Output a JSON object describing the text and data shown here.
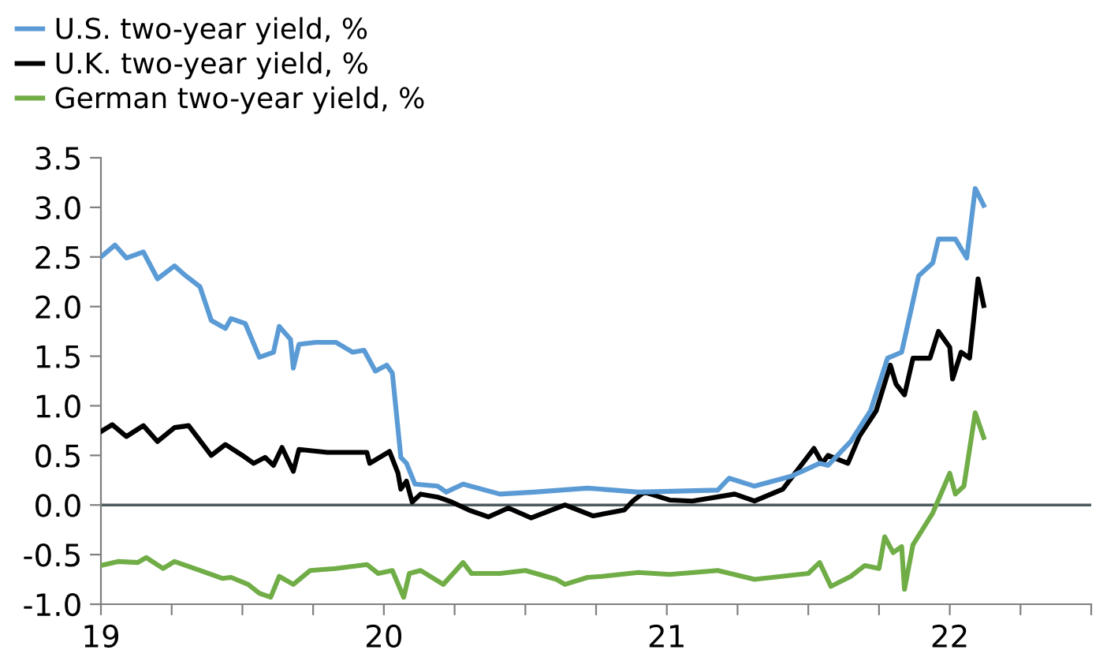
{
  "chart_data": {
    "type": "line",
    "series": [
      {
        "name": "U.S. two-year yield, %",
        "color": "#5b9bd5",
        "x": [
          19.0,
          19.05,
          19.09,
          19.15,
          19.2,
          19.26,
          19.3,
          19.35,
          19.39,
          19.44,
          19.46,
          19.51,
          19.56,
          19.61,
          19.63,
          19.67,
          19.68,
          19.7,
          19.76,
          19.83,
          19.89,
          19.93,
          19.97,
          20.01,
          20.03,
          20.06,
          20.08,
          20.11,
          20.19,
          20.22,
          20.28,
          20.41,
          20.53,
          20.72,
          20.9,
          21.18,
          21.22,
          21.31,
          21.44,
          21.54,
          21.57,
          21.65,
          21.72,
          21.78,
          21.83,
          21.89,
          21.94,
          21.96,
          22.02,
          22.06,
          22.09,
          22.12
        ],
        "values": [
          2.5,
          2.62,
          2.49,
          2.55,
          2.28,
          2.41,
          2.31,
          2.2,
          1.86,
          1.78,
          1.88,
          1.83,
          1.49,
          1.54,
          1.8,
          1.67,
          1.38,
          1.62,
          1.64,
          1.64,
          1.54,
          1.56,
          1.35,
          1.41,
          1.33,
          0.48,
          0.42,
          0.21,
          0.19,
          0.13,
          0.21,
          0.11,
          0.13,
          0.17,
          0.13,
          0.15,
          0.27,
          0.19,
          0.29,
          0.42,
          0.4,
          0.64,
          0.95,
          1.48,
          1.54,
          2.31,
          2.44,
          2.68,
          2.68,
          2.49,
          3.19,
          3.02
        ]
      },
      {
        "name": "U.K. two-year yield, %",
        "color": "#000000",
        "x": [
          19.0,
          19.04,
          19.09,
          19.15,
          19.2,
          19.26,
          19.31,
          19.39,
          19.44,
          19.5,
          19.54,
          19.58,
          19.61,
          19.64,
          19.68,
          19.7,
          19.8,
          19.94,
          19.95,
          20.02,
          20.05,
          20.06,
          20.08,
          20.1,
          20.13,
          20.19,
          20.24,
          20.3,
          20.37,
          20.44,
          20.52,
          20.64,
          20.74,
          20.85,
          20.88,
          20.92,
          21.01,
          21.09,
          21.24,
          21.31,
          21.41,
          21.48,
          21.52,
          21.55,
          21.57,
          21.64,
          21.68,
          21.74,
          21.79,
          21.81,
          21.84,
          21.87,
          21.93,
          21.96,
          22.0,
          22.01,
          22.04,
          22.07,
          22.1,
          22.12
        ],
        "values": [
          0.74,
          0.81,
          0.69,
          0.8,
          0.64,
          0.78,
          0.8,
          0.5,
          0.61,
          0.5,
          0.42,
          0.48,
          0.4,
          0.58,
          0.34,
          0.56,
          0.53,
          0.53,
          0.42,
          0.54,
          0.32,
          0.16,
          0.24,
          0.03,
          0.11,
          0.08,
          0.03,
          -0.05,
          -0.12,
          -0.03,
          -0.13,
          0.0,
          -0.11,
          -0.05,
          0.04,
          0.13,
          0.05,
          0.04,
          0.11,
          0.04,
          0.16,
          0.42,
          0.57,
          0.42,
          0.5,
          0.42,
          0.69,
          0.95,
          1.41,
          1.22,
          1.11,
          1.48,
          1.48,
          1.75,
          1.59,
          1.27,
          1.54,
          1.48,
          2.28,
          2.01
        ]
      },
      {
        "name": "German two-year yield, %",
        "color": "#70ad47",
        "x": [
          19.0,
          19.06,
          19.13,
          19.16,
          19.22,
          19.26,
          19.35,
          19.43,
          19.46,
          19.52,
          19.56,
          19.6,
          19.63,
          19.68,
          19.74,
          19.83,
          19.94,
          19.98,
          20.03,
          20.07,
          20.09,
          20.13,
          20.21,
          20.28,
          20.31,
          20.41,
          20.5,
          20.61,
          20.64,
          20.72,
          20.77,
          20.9,
          21.01,
          21.18,
          21.31,
          21.5,
          21.54,
          21.58,
          21.65,
          21.7,
          21.75,
          21.77,
          21.8,
          21.83,
          21.84,
          21.87,
          21.94,
          22.0,
          22.02,
          22.05,
          22.09,
          22.12
        ],
        "values": [
          -0.61,
          -0.57,
          -0.58,
          -0.53,
          -0.64,
          -0.57,
          -0.66,
          -0.74,
          -0.73,
          -0.8,
          -0.89,
          -0.93,
          -0.72,
          -0.8,
          -0.66,
          -0.64,
          -0.6,
          -0.69,
          -0.66,
          -0.93,
          -0.69,
          -0.66,
          -0.8,
          -0.58,
          -0.69,
          -0.69,
          -0.66,
          -0.75,
          -0.8,
          -0.73,
          -0.72,
          -0.68,
          -0.7,
          -0.66,
          -0.75,
          -0.69,
          -0.58,
          -0.82,
          -0.72,
          -0.61,
          -0.64,
          -0.32,
          -0.48,
          -0.42,
          -0.85,
          -0.4,
          -0.08,
          0.32,
          0.11,
          0.19,
          0.93,
          0.68
        ]
      }
    ],
    "xlim": [
      19,
      22.5
    ],
    "xticks": [
      19,
      {
        "value": 19.25,
        "label": null
      },
      {
        "value": 19.5,
        "label": null
      },
      {
        "value": 19.75,
        "label": null
      },
      20,
      {
        "value": 20.25,
        "label": null
      },
      {
        "value": 20.5,
        "label": null
      },
      {
        "value": 20.75,
        "label": null
      },
      21,
      {
        "value": 21.25,
        "label": null
      },
      {
        "value": 21.5,
        "label": null
      },
      {
        "value": 21.75,
        "label": null
      },
      22,
      {
        "value": 22.25,
        "label": null
      },
      {
        "value": 22.5,
        "label": null
      }
    ],
    "ylim": [
      -1.0,
      3.5
    ],
    "yticks": [
      {
        "value": -1,
        "label": "-1.0"
      },
      -0.5,
      {
        "value": 0,
        "label": "0.0"
      },
      0.5,
      {
        "value": 1,
        "label": "1.0"
      },
      1.5,
      {
        "value": 2,
        "label": "2.0"
      },
      2.5,
      {
        "value": 3,
        "label": "3.0"
      },
      3.5
    ],
    "ref_lines": [
      {
        "axis": "y",
        "value": 0,
        "color": "#4d5a5e"
      }
    ],
    "grid": false,
    "legend": "top left",
    "marker": "none",
    "line_style": "solid"
  }
}
